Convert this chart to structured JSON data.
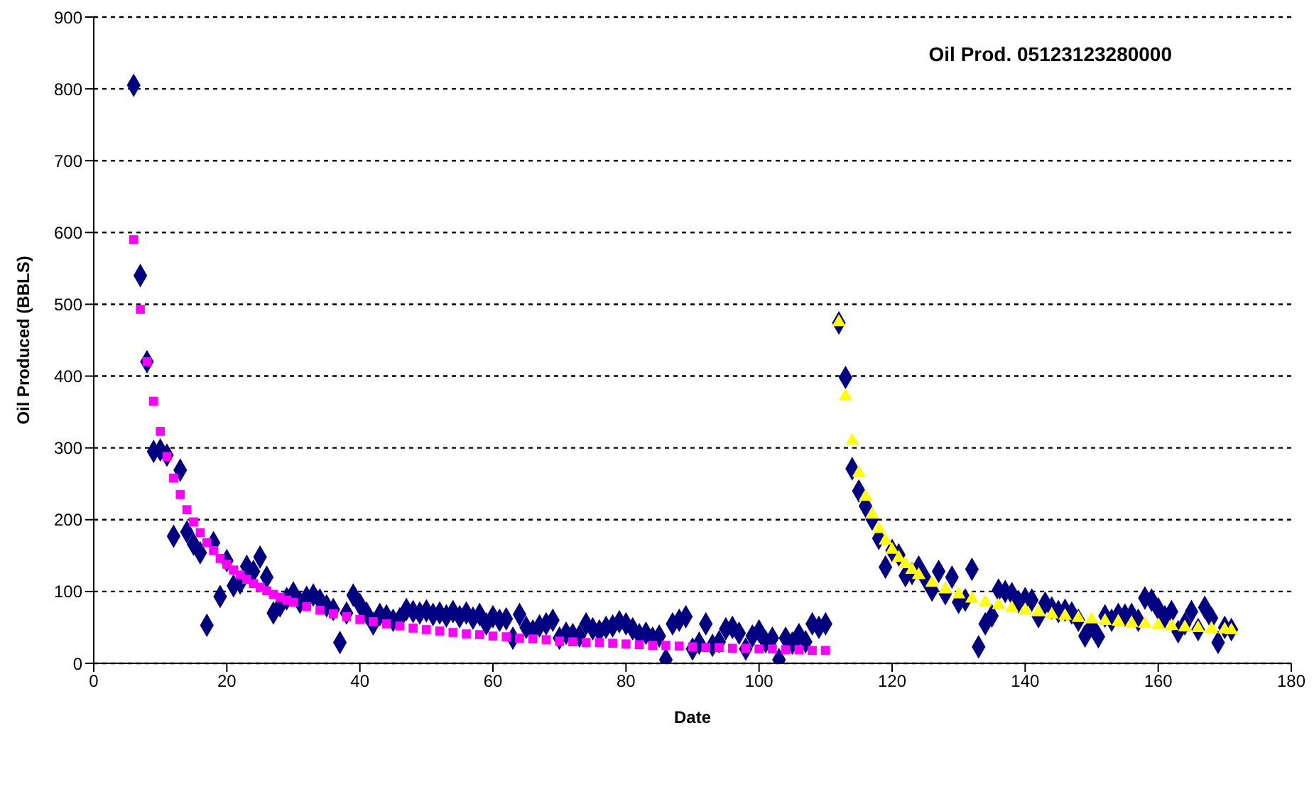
{
  "chart_data": {
    "type": "scatter",
    "title": "Oil Prod. 05123123280000",
    "xlabel": "Date",
    "ylabel": "Oil Produced (BBLS)",
    "xlim": [
      0,
      180
    ],
    "xticks": [
      0,
      20,
      40,
      60,
      80,
      100,
      120,
      140,
      160,
      180
    ],
    "ylim": [
      0,
      900
    ],
    "yticks": [
      0,
      100,
      200,
      300,
      400,
      500,
      600,
      700,
      800,
      900
    ],
    "grid": "y",
    "series": [
      {
        "marker": "diamond",
        "color": "#000080",
        "x": [
          6,
          7,
          8,
          9,
          10,
          11,
          12,
          13,
          14,
          15,
          16,
          17,
          18,
          19,
          20,
          21,
          22,
          23,
          24,
          25,
          26,
          27,
          28,
          29,
          30,
          31,
          32,
          33,
          34,
          35,
          36,
          37,
          38,
          39,
          40,
          41,
          42,
          43,
          44,
          45,
          46,
          47,
          48,
          49,
          50,
          51,
          52,
          53,
          54,
          55,
          56,
          57,
          58,
          59,
          60,
          61,
          62,
          63,
          64,
          65,
          66,
          67,
          68,
          69,
          70,
          71,
          72,
          73,
          74,
          75,
          76,
          77,
          78,
          79,
          80,
          81,
          82,
          83,
          84,
          85,
          86,
          87,
          88,
          89,
          90,
          91,
          92,
          93,
          94,
          95,
          96,
          97,
          98,
          99,
          100,
          101,
          102,
          103,
          104,
          105,
          106,
          107,
          108,
          109,
          110,
          112,
          113,
          114,
          115,
          116,
          117,
          118,
          119,
          120,
          121,
          122,
          123,
          124,
          125,
          126,
          127,
          128,
          129,
          130,
          131,
          132,
          133,
          134,
          135,
          136,
          137,
          138,
          139,
          140,
          141,
          142,
          143,
          144,
          145,
          146,
          147,
          148,
          149,
          150,
          151,
          152,
          153,
          154,
          155,
          156,
          157,
          158,
          159,
          160,
          161,
          162,
          163,
          164,
          165,
          166,
          167,
          168,
          169,
          170,
          171
        ],
        "values": [
          805,
          540,
          420,
          295,
          297,
          290,
          177,
          269,
          183,
          166,
          154,
          53,
          168,
          93,
          143,
          108,
          112,
          135,
          128,
          148,
          120,
          70,
          80,
          90,
          98,
          85,
          92,
          95,
          88,
          80,
          75,
          29,
          70,
          95,
          82,
          70,
          55,
          68,
          66,
          60,
          62,
          75,
          72,
          70,
          73,
          68,
          70,
          66,
          72,
          65,
          70,
          63,
          68,
          55,
          65,
          60,
          62,
          35,
          68,
          50,
          45,
          52,
          55,
          60,
          35,
          42,
          40,
          38,
          55,
          48,
          45,
          50,
          52,
          58,
          55,
          48,
          40,
          42,
          35,
          38,
          5,
          55,
          60,
          65,
          20,
          28,
          55,
          25,
          30,
          48,
          50,
          42,
          20,
          38,
          45,
          30,
          35,
          5,
          35,
          28,
          40,
          30,
          55,
          50,
          55,
          474,
          398,
          271,
          240,
          219,
          201,
          174,
          134,
          157,
          151,
          122,
          125,
          134,
          118,
          102,
          128,
          97,
          120,
          85,
          88,
          131,
          23,
          55,
          66,
          102,
          100,
          97,
          86,
          90,
          88,
          65,
          84,
          77,
          72,
          74,
          70,
          60,
          38,
          52,
          37,
          66,
          60,
          68,
          67,
          68,
          60,
          91,
          88,
          76,
          65,
          72,
          44,
          55,
          72,
          47,
          78,
          63,
          29,
          50,
          47
        ]
      },
      {
        "marker": "square",
        "color": "#ff00ff",
        "x": [
          6,
          7,
          8,
          9,
          10,
          11,
          12,
          13,
          14,
          15,
          16,
          17,
          18,
          19,
          20,
          21,
          22,
          23,
          24,
          25,
          26,
          27,
          28,
          29,
          30,
          32,
          34,
          36,
          38,
          40,
          42,
          44,
          46,
          48,
          50,
          52,
          54,
          56,
          58,
          60,
          62,
          64,
          66,
          68,
          70,
          72,
          74,
          76,
          78,
          80,
          82,
          84,
          86,
          88,
          90,
          92,
          94,
          96,
          98,
          100,
          102,
          104,
          106,
          108,
          110
        ],
        "values": [
          590,
          493,
          420,
          365,
          323,
          288,
          258,
          235,
          214,
          197,
          182,
          168,
          157,
          146,
          138,
          130,
          123,
          117,
          111,
          106,
          101,
          96,
          92,
          88,
          85,
          79,
          74,
          69,
          65,
          61,
          58,
          55,
          52,
          49,
          47,
          45,
          43,
          41,
          40,
          38,
          37,
          35,
          34,
          33,
          31,
          30,
          29,
          29,
          28,
          27,
          26,
          25,
          25,
          24,
          23,
          22,
          22,
          21,
          21,
          20,
          20,
          19,
          19,
          18,
          18
        ]
      },
      {
        "marker": "triangle",
        "color": "#ffff00",
        "x": [
          112,
          113,
          114,
          115,
          116,
          117,
          118,
          119,
          120,
          121,
          122,
          123,
          124,
          126,
          128,
          130,
          132,
          134,
          136,
          138,
          140,
          142,
          144,
          146,
          148,
          150,
          152,
          154,
          156,
          158,
          160,
          162,
          164,
          166,
          168,
          170,
          171
        ],
        "values": [
          475,
          372,
          310,
          265,
          232,
          207,
          187,
          171,
          158,
          147,
          138,
          130,
          123,
          112,
          103,
          96,
          90,
          85,
          81,
          77,
          74,
          71,
          68,
          66,
          63,
          61,
          59,
          58,
          56,
          55,
          53,
          52,
          50,
          49,
          48,
          47,
          46
        ]
      }
    ]
  }
}
